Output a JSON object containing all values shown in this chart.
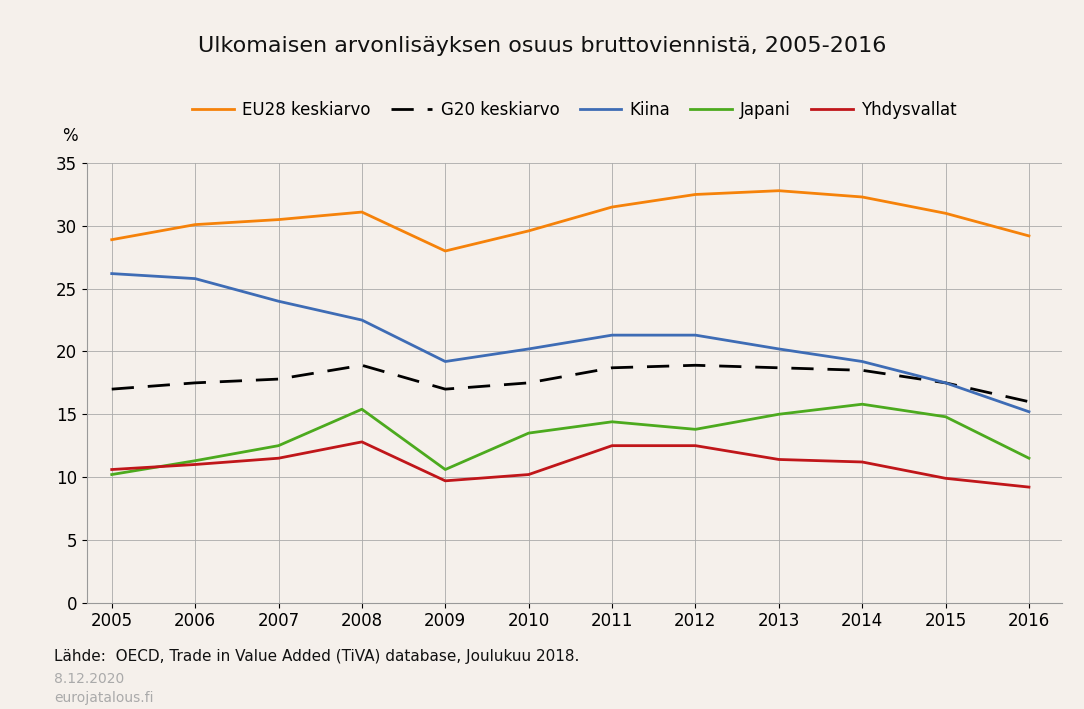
{
  "title": "Ulkomaisen arvonlisäyksen osuus bruttoviennistä, 2005-2016",
  "years": [
    2005,
    2006,
    2007,
    2008,
    2009,
    2010,
    2011,
    2012,
    2013,
    2014,
    2015,
    2016
  ],
  "EU28": [
    28.9,
    30.1,
    30.5,
    31.1,
    28.0,
    29.6,
    31.5,
    32.5,
    32.8,
    32.3,
    31.0,
    29.2
  ],
  "G20": [
    17.0,
    17.5,
    17.8,
    18.9,
    17.0,
    17.5,
    18.7,
    18.9,
    18.7,
    18.5,
    17.5,
    16.0
  ],
  "Kiina": [
    26.2,
    25.8,
    24.0,
    22.5,
    19.2,
    20.2,
    21.3,
    21.3,
    20.2,
    19.2,
    17.5,
    15.2
  ],
  "Japani": [
    10.2,
    11.3,
    12.5,
    15.4,
    10.6,
    13.5,
    14.4,
    13.8,
    15.0,
    15.8,
    14.8,
    11.5
  ],
  "Yhdysvallat": [
    10.6,
    11.0,
    11.5,
    12.8,
    9.7,
    10.2,
    12.5,
    12.5,
    11.4,
    11.2,
    9.9,
    9.2
  ],
  "colors": {
    "EU28": "#f5820a",
    "G20": "#000000",
    "Kiina": "#3e6cb5",
    "Japani": "#4caa1e",
    "Yhdysvallat": "#c0161a"
  },
  "ylim": [
    0,
    35
  ],
  "yticks": [
    0,
    5,
    10,
    15,
    20,
    25,
    30,
    35
  ],
  "background_color": "#f5f0eb",
  "source_text": "Lähde:  OECD, Trade in Value Added (TiVA) database, Joulukuu 2018.",
  "date_text": "8.12.2020",
  "website_text": "eurojatalous.fi",
  "ylabel": "%"
}
